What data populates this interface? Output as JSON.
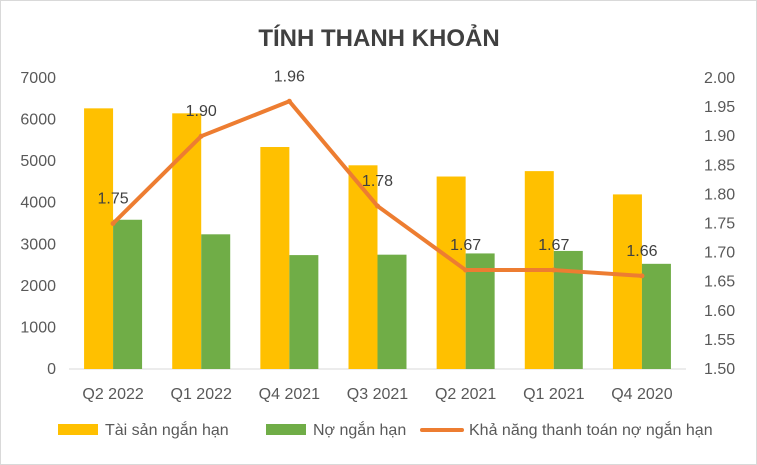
{
  "chart_data": {
    "type": "bar",
    "title": "TÍNH THANH KHOẢN",
    "categories": [
      "Q2 2022",
      "Q1 2022",
      "Q4 2021",
      "Q3 2021",
      "Q2 2021",
      "Q1 2021",
      "Q4 2020"
    ],
    "series": [
      {
        "name": "Tài sản ngắn hạn",
        "type": "bar",
        "axis": "left",
        "color": "#FFC000",
        "values": [
          6270,
          6150,
          5340,
          4900,
          4630,
          4760,
          4200
        ]
      },
      {
        "name": "Nợ ngắn hạn",
        "type": "bar",
        "axis": "left",
        "color": "#70AD47",
        "values": [
          3590,
          3240,
          2740,
          2750,
          2780,
          2840,
          2530
        ]
      },
      {
        "name": "Khả năng thanh toán nợ ngắn hạn",
        "type": "line",
        "axis": "right",
        "color": "#ED7D31",
        "values": [
          1.75,
          1.9,
          1.96,
          1.78,
          1.67,
          1.67,
          1.66
        ],
        "labels": [
          "1.75",
          "1.90",
          "1.96",
          "1.78",
          "1.67",
          "1.67",
          "1.66"
        ]
      }
    ],
    "y_left": {
      "min": 0,
      "max": 7000,
      "step": 1000,
      "ticks": [
        "0",
        "1000",
        "2000",
        "3000",
        "4000",
        "5000",
        "6000",
        "7000"
      ]
    },
    "y_right": {
      "min": 1.5,
      "max": 2.0,
      "step": 0.05,
      "ticks": [
        "1.50",
        "1.55",
        "1.60",
        "1.65",
        "1.70",
        "1.75",
        "1.80",
        "1.85",
        "1.90",
        "1.95",
        "2.00"
      ]
    },
    "grid": false,
    "legend_position": "bottom"
  }
}
